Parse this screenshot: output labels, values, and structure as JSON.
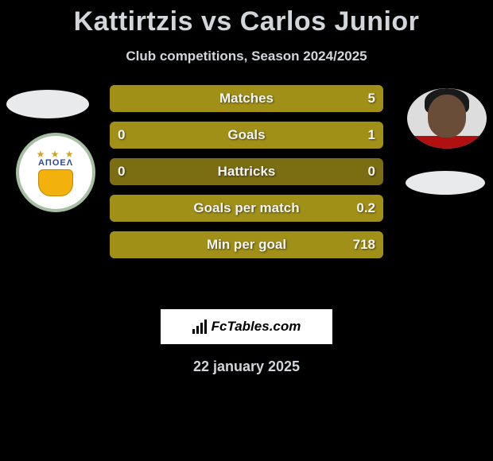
{
  "title": "Kattirtzis vs Carlos Junior",
  "subtitle": "Club competitions, Season 2024/2025",
  "footer_date": "22 january 2025",
  "logo_text": "FcTables.com",
  "club_left_name": "ΑΠΟΕΛ",
  "colors": {
    "background": "#000000",
    "text_light": "#d2d6da",
    "olive": "#a09018",
    "olive_dark": "#7a6d12",
    "avatar_ring": "#a6bfa2",
    "ellipse": "#e9eaec",
    "logo_box": "#ffffff"
  },
  "bars": [
    {
      "label": "Matches",
      "left": "",
      "right": "5",
      "left_pct": 0,
      "right_pct": 100,
      "left_color": "#a09018",
      "right_color": "#a09018",
      "bg_color": "#a09018"
    },
    {
      "label": "Goals",
      "left": "0",
      "right": "1",
      "left_pct": 0,
      "right_pct": 100,
      "left_color": "#a09018",
      "right_color": "#a09018",
      "bg_color": "#a09018"
    },
    {
      "label": "Hattricks",
      "left": "0",
      "right": "0",
      "left_pct": 0,
      "right_pct": 0,
      "left_color": "#a09018",
      "right_color": "#a09018",
      "bg_color": "#7a6d12"
    },
    {
      "label": "Goals per match",
      "left": "",
      "right": "0.2",
      "left_pct": 0,
      "right_pct": 100,
      "left_color": "#a09018",
      "right_color": "#a09018",
      "bg_color": "#a09018"
    },
    {
      "label": "Min per goal",
      "left": "",
      "right": "718",
      "left_pct": 0,
      "right_pct": 100,
      "left_color": "#a09018",
      "right_color": "#a09018",
      "bg_color": "#a09018"
    }
  ]
}
